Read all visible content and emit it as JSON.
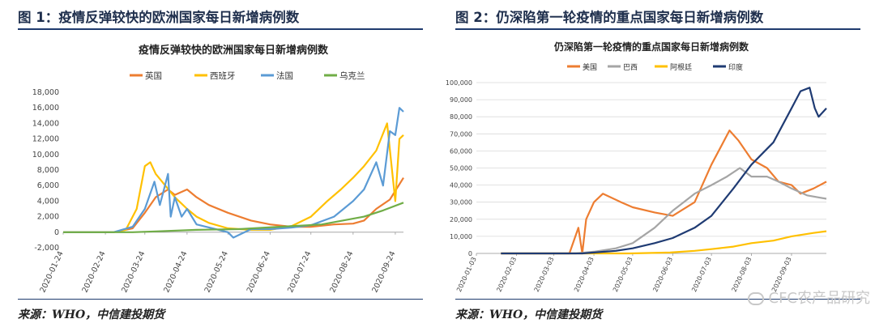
{
  "left": {
    "figure_title": "图 1：疫情反弹较快的欧洲国家每日新增病例数",
    "source": "来源：WHO，中信建投期货"
  },
  "right": {
    "figure_title": "图 2：仍深陷第一轮疫情的重点国家每日新增病例数",
    "source": "来源：WHO，中信建投期货"
  },
  "watermark": "CFC农产品研究",
  "chart_data": [
    {
      "type": "line",
      "title": "疫情反弹较快的欧洲国家每日新增病例数",
      "ylim": [
        -2000,
        18000
      ],
      "yticks": [
        "-2,000",
        "0",
        "2,000",
        "4,000",
        "6,000",
        "8,000",
        "10,000",
        "12,000",
        "14,000",
        "16,000",
        "18,000"
      ],
      "xlim": [
        "2020-01-24",
        "2020-09-30"
      ],
      "xticks": [
        "2020-01-24",
        "2020-02-24",
        "2020-03-24",
        "2020-04-24",
        "2020-05-24",
        "2020-06-24",
        "2020-07-24",
        "2020-08-24",
        "2020-09-24"
      ],
      "grid": false,
      "legend": "top",
      "series": [
        {
          "name": "英国",
          "color": "#ed7d31",
          "x": [
            "2020-01-24",
            "2020-03-01",
            "2020-03-15",
            "2020-03-24",
            "2020-04-01",
            "2020-04-10",
            "2020-04-15",
            "2020-04-24",
            "2020-05-01",
            "2020-05-10",
            "2020-05-24",
            "2020-06-10",
            "2020-06-24",
            "2020-07-10",
            "2020-07-24",
            "2020-08-10",
            "2020-08-24",
            "2020-09-01",
            "2020-09-10",
            "2020-09-20",
            "2020-09-30"
          ],
          "y": [
            0,
            0,
            500,
            2500,
            4500,
            5500,
            4800,
            5500,
            4500,
            3500,
            2500,
            1500,
            1000,
            700,
            700,
            1000,
            1100,
            1500,
            3000,
            4200,
            7000
          ]
        },
        {
          "name": "西班牙",
          "color": "#ffc000",
          "x": [
            "2020-01-24",
            "2020-03-01",
            "2020-03-10",
            "2020-03-18",
            "2020-03-24",
            "2020-03-28",
            "2020-04-01",
            "2020-04-08",
            "2020-04-15",
            "2020-04-24",
            "2020-05-01",
            "2020-05-10",
            "2020-05-24",
            "2020-06-10",
            "2020-06-24",
            "2020-07-10",
            "2020-07-24",
            "2020-08-05",
            "2020-08-15",
            "2020-08-24",
            "2020-09-01",
            "2020-09-10",
            "2020-09-18",
            "2020-09-24",
            "2020-09-27",
            "2020-09-30"
          ],
          "y": [
            0,
            0,
            300,
            3000,
            8500,
            9000,
            7500,
            6000,
            4500,
            3000,
            2000,
            1200,
            500,
            300,
            300,
            800,
            2000,
            4000,
            5500,
            7000,
            8500,
            10500,
            14000,
            4000,
            12000,
            12500
          ]
        },
        {
          "name": "法国",
          "color": "#5b9bd5",
          "x": [
            "2020-01-24",
            "2020-03-01",
            "2020-03-15",
            "2020-03-24",
            "2020-03-31",
            "2020-04-04",
            "2020-04-10",
            "2020-04-12",
            "2020-04-15",
            "2020-04-20",
            "2020-04-24",
            "2020-05-01",
            "2020-05-15",
            "2020-05-24",
            "2020-05-28",
            "2020-06-10",
            "2020-06-24",
            "2020-07-10",
            "2020-07-24",
            "2020-08-10",
            "2020-08-24",
            "2020-09-01",
            "2020-09-10",
            "2020-09-15",
            "2020-09-20",
            "2020-09-24",
            "2020-09-27",
            "2020-09-30"
          ],
          "y": [
            0,
            0,
            700,
            3000,
            6500,
            3500,
            7500,
            2000,
            4500,
            2000,
            3000,
            1000,
            400,
            0,
            -700,
            400,
            400,
            600,
            900,
            2000,
            4000,
            5500,
            9000,
            6000,
            13000,
            12500,
            16000,
            15500
          ]
        },
        {
          "name": "乌克兰",
          "color": "#70ad47",
          "x": [
            "2020-01-24",
            "2020-03-15",
            "2020-04-01",
            "2020-05-01",
            "2020-06-01",
            "2020-07-01",
            "2020-08-01",
            "2020-09-01",
            "2020-09-15",
            "2020-09-30"
          ],
          "y": [
            0,
            0,
            100,
            300,
            400,
            700,
            1000,
            2000,
            2800,
            3800
          ]
        }
      ]
    },
    {
      "type": "line",
      "title": "仍深陷第一轮疫情的重点国家每日新增病例数",
      "ylim": [
        0,
        100000
      ],
      "yticks": [
        "0",
        "10,000",
        "20,000",
        "30,000",
        "40,000",
        "50,000",
        "60,000",
        "70,000",
        "80,000",
        "90,000",
        "100,000"
      ],
      "xlim": [
        "2020-01-03",
        "2020-09-30"
      ],
      "xticks": [
        "2020-01-03",
        "2020-02-03",
        "2020-03-03",
        "2020-04-03",
        "2020-05-03",
        "2020-06-03",
        "2020-07-03",
        "2020-08-03",
        "2020-09-03"
      ],
      "grid": true,
      "legend": "top",
      "series": [
        {
          "name": "美国",
          "color": "#ed7d31",
          "x": [
            "2020-01-22",
            "2020-03-15",
            "2020-03-22",
            "2020-03-25",
            "2020-03-28",
            "2020-04-03",
            "2020-04-10",
            "2020-04-24",
            "2020-05-03",
            "2020-05-20",
            "2020-06-03",
            "2020-06-20",
            "2020-07-03",
            "2020-07-10",
            "2020-07-17",
            "2020-07-24",
            "2020-08-03",
            "2020-08-15",
            "2020-08-24",
            "2020-09-03",
            "2020-09-10",
            "2020-09-20",
            "2020-09-30"
          ],
          "y": [
            0,
            0,
            15000,
            0,
            20000,
            30000,
            35000,
            30000,
            27000,
            24000,
            22000,
            30000,
            52000,
            62000,
            72000,
            66000,
            55000,
            50000,
            42000,
            40000,
            35000,
            38000,
            42000
          ]
        },
        {
          "name": "巴西",
          "color": "#a5a5a5",
          "x": [
            "2020-01-22",
            "2020-03-20",
            "2020-04-03",
            "2020-04-20",
            "2020-05-03",
            "2020-05-20",
            "2020-06-03",
            "2020-06-20",
            "2020-07-03",
            "2020-07-15",
            "2020-07-25",
            "2020-08-03",
            "2020-08-15",
            "2020-08-24",
            "2020-09-03",
            "2020-09-15",
            "2020-09-30"
          ],
          "y": [
            0,
            0,
            1000,
            3000,
            6000,
            15000,
            25000,
            35000,
            40000,
            45000,
            50000,
            45000,
            45000,
            42000,
            38000,
            34000,
            32000
          ]
        },
        {
          "name": "阿根廷",
          "color": "#ffc000",
          "x": [
            "2020-01-22",
            "2020-05-01",
            "2020-06-01",
            "2020-06-20",
            "2020-07-03",
            "2020-07-20",
            "2020-08-03",
            "2020-08-20",
            "2020-09-03",
            "2020-09-20",
            "2020-09-30"
          ],
          "y": [
            0,
            0,
            500,
            1500,
            2500,
            4000,
            6000,
            7500,
            10000,
            12000,
            13000
          ]
        },
        {
          "name": "印度",
          "color": "#1f3b73",
          "x": [
            "2020-01-22",
            "2020-03-25",
            "2020-04-03",
            "2020-04-20",
            "2020-05-03",
            "2020-05-20",
            "2020-06-03",
            "2020-06-20",
            "2020-07-03",
            "2020-07-20",
            "2020-08-03",
            "2020-08-20",
            "2020-09-03",
            "2020-09-10",
            "2020-09-17",
            "2020-09-21",
            "2020-09-24",
            "2020-09-30"
          ],
          "y": [
            0,
            0,
            500,
            1500,
            3000,
            6000,
            9000,
            15000,
            22000,
            38000,
            52000,
            65000,
            85000,
            95000,
            97000,
            85000,
            80000,
            85000
          ]
        }
      ]
    }
  ]
}
